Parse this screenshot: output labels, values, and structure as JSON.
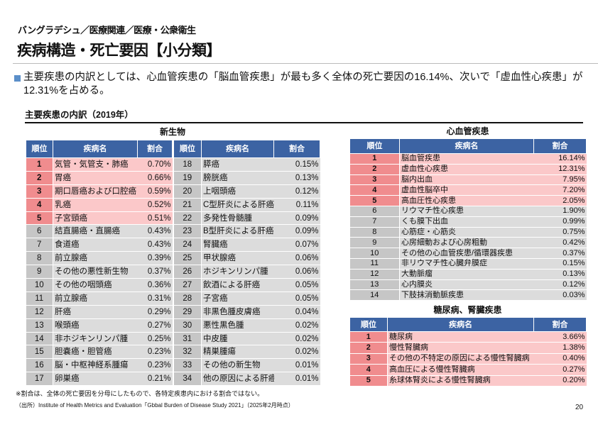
{
  "header": {
    "breadcrumb": "バングラデシュ／医療関連／医療・公衆衛生",
    "title": "疾病構造・死亡要因【小分類】"
  },
  "lead": "主要疾患の内訳としては、心血管疾患の「脳血管疾患」が最も多く全体の死亡要因の16.14%、次いで「虚血性心疾患」が12.31%を占める。",
  "subtitle": "主要疾患の内訳（2019年）",
  "columns": {
    "rank": "順位",
    "name": "疾病名",
    "share": "割合"
  },
  "colors": {
    "header": "#3c63a3",
    "top5_rank": "#f08c8e",
    "top5_row": "#fbc8c9",
    "other_rank": "#c6c6c6",
    "other_row": "#dcdcdc"
  },
  "neoplasms": {
    "title": "新生物",
    "rows": [
      [
        "1",
        "気管・気管支・肺癌",
        "0.70%"
      ],
      [
        "2",
        "胃癌",
        "0.66%"
      ],
      [
        "3",
        "期口唇癌および口腔癌",
        "0.59%"
      ],
      [
        "4",
        "乳癌",
        "0.52%"
      ],
      [
        "5",
        "子宮頸癌",
        "0.51%"
      ],
      [
        "6",
        "結直腸癌・直腸癌",
        "0.43%"
      ],
      [
        "7",
        "食道癌",
        "0.43%"
      ],
      [
        "8",
        "前立腺癌",
        "0.39%"
      ],
      [
        "9",
        "その他の悪性新生物",
        "0.37%"
      ],
      [
        "10",
        "その他の咽頭癌",
        "0.36%"
      ],
      [
        "11",
        "前立腺癌",
        "0.31%"
      ],
      [
        "12",
        "肝癌",
        "0.29%"
      ],
      [
        "13",
        "喉頭癌",
        "0.27%"
      ],
      [
        "14",
        "非ホジキンリンパ腫",
        "0.25%"
      ],
      [
        "15",
        "胆嚢癌・胆管癌",
        "0.23%"
      ],
      [
        "16",
        "脳・中枢神経系腫瘍",
        "0.23%"
      ],
      [
        "17",
        "卵巣癌",
        "0.21%"
      ],
      [
        "18",
        "膵癌",
        "0.15%"
      ],
      [
        "19",
        "膀胱癌",
        "0.13%"
      ],
      [
        "20",
        "上咽頭癌",
        "0.12%"
      ],
      [
        "21",
        "C型肝炎による肝癌",
        "0.11%"
      ],
      [
        "22",
        "多発性骨髄腫",
        "0.09%"
      ],
      [
        "23",
        "B型肝炎による肝癌",
        "0.09%"
      ],
      [
        "24",
        "腎臓癌",
        "0.07%"
      ],
      [
        "25",
        "甲状腺癌",
        "0.06%"
      ],
      [
        "26",
        "ホジキンリンパ腫",
        "0.06%"
      ],
      [
        "27",
        "飲酒による肝癌",
        "0.05%"
      ],
      [
        "28",
        "子宮癌",
        "0.05%"
      ],
      [
        "29",
        "非黒色腫皮膚癌",
        "0.04%"
      ],
      [
        "30",
        "悪性黒色腫",
        "0.02%"
      ],
      [
        "31",
        "中皮腫",
        "0.02%"
      ],
      [
        "32",
        "精巣腫瘍",
        "0.02%"
      ],
      [
        "33",
        "その他の新生物",
        "0.01%"
      ],
      [
        "34",
        "他の原因による肝癌",
        "0.01%"
      ]
    ]
  },
  "cardiovascular": {
    "title": "心血管疾患",
    "rows": [
      [
        "1",
        "脳血管疾患",
        "16.14%"
      ],
      [
        "2",
        "虚血性心疾患",
        "12.31%"
      ],
      [
        "3",
        "脳内出血",
        "7.95%"
      ],
      [
        "4",
        "虚血性脳卒中",
        "7.20%"
      ],
      [
        "5",
        "高血圧性心疾患",
        "2.05%"
      ],
      [
        "6",
        "リウマチ性心疾患",
        "1.90%"
      ],
      [
        "7",
        "くも膜下出血",
        "0.99%"
      ],
      [
        "8",
        "心筋症・心筋炎",
        "0.75%"
      ],
      [
        "9",
        "心房細動および心房粗動",
        "0.42%"
      ],
      [
        "10",
        "その他の心血管疾患/循環器疾患",
        "0.37%"
      ],
      [
        "11",
        "非リウマチ性心臓弁膜症",
        "0.15%"
      ],
      [
        "12",
        "大動脈瘤",
        "0.13%"
      ],
      [
        "13",
        "心内膜炎",
        "0.12%"
      ],
      [
        "14",
        "下肢抹消動脈疾患",
        "0.03%"
      ]
    ]
  },
  "diabetes_kidney": {
    "title": "糖尿病、腎臓疾患",
    "rows": [
      [
        "1",
        "糖尿病",
        "3.66%"
      ],
      [
        "2",
        "慢性腎臓病",
        "1.38%"
      ],
      [
        "3",
        "その他の不特定の原因による慢性腎臓病",
        "0.40%"
      ],
      [
        "4",
        "高血圧による慢性腎臓病",
        "0.27%"
      ],
      [
        "5",
        "糸球体腎炎による慢性腎臓病",
        "0.20%"
      ]
    ]
  },
  "footer": {
    "note": "※割合は、全体の死亡要因を分母にしたもので、各特定疾患内における割合ではない。",
    "source": "（出所）Institute of Health Metrics and Evaluation「Gbbal Burden of Disease Study 2021」（2025年2月時点）",
    "page": "20"
  }
}
